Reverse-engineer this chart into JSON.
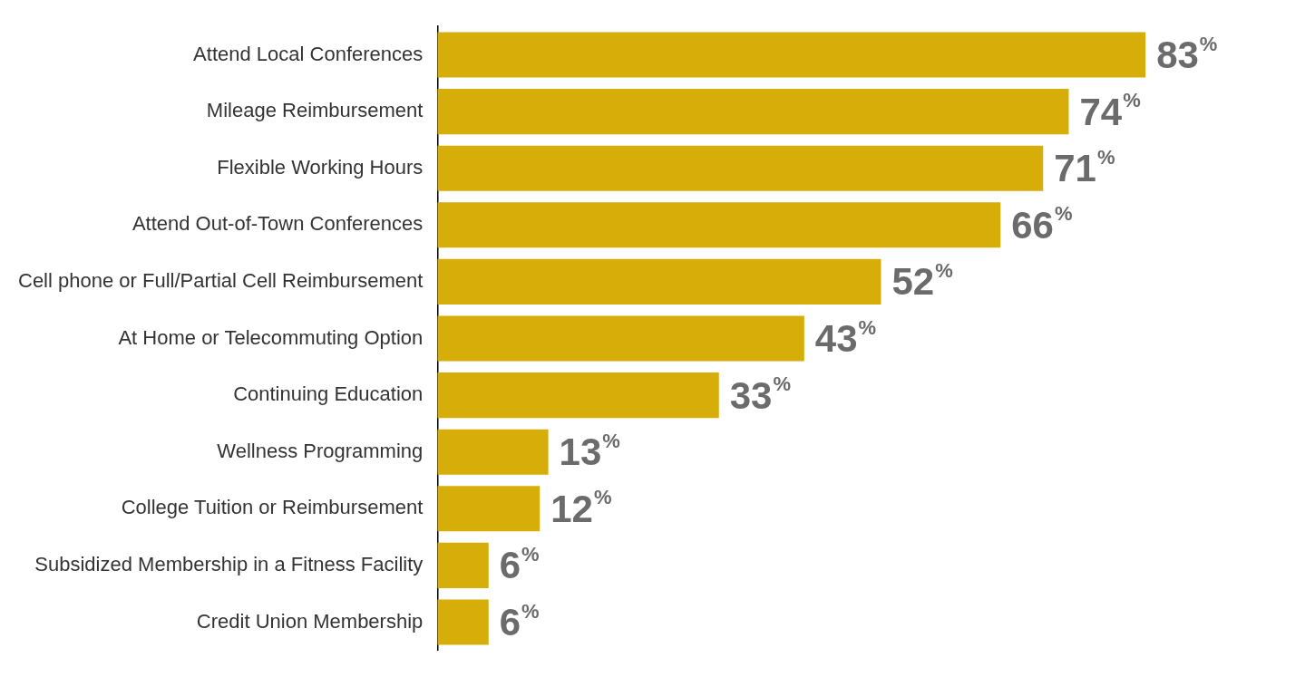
{
  "chart_data": {
    "type": "bar",
    "orientation": "horizontal",
    "categories": [
      "Attend Local Conferences",
      "Mileage Reimbursement",
      "Flexible Working Hours",
      "Attend Out-of-Town Conferences",
      "Cell phone or Full/Partial Cell Reimbursement",
      "At Home or Telecommuting Option",
      "Continuing Education",
      "Wellness Programming",
      "College Tuition or Reimbursement",
      "Subsidized Membership in a Fitness Facility",
      "Credit Union Membership"
    ],
    "values": [
      83,
      74,
      71,
      66,
      52,
      43,
      33,
      13,
      12,
      6,
      6
    ],
    "value_labels": [
      "83$^{%}$",
      "74$^{%}$",
      "71$^{%}$",
      "66$^{%}$",
      "52$^{%}$",
      "43$^{%}$",
      "33$^{%}$",
      "13$^{%}$",
      "12$^{%}$",
      "6$^{%}$",
      "6$^{%}$"
    ],
    "color": "#d6ad09",
    "grid": false,
    "legend": false,
    "tick_labels": "y"
  }
}
